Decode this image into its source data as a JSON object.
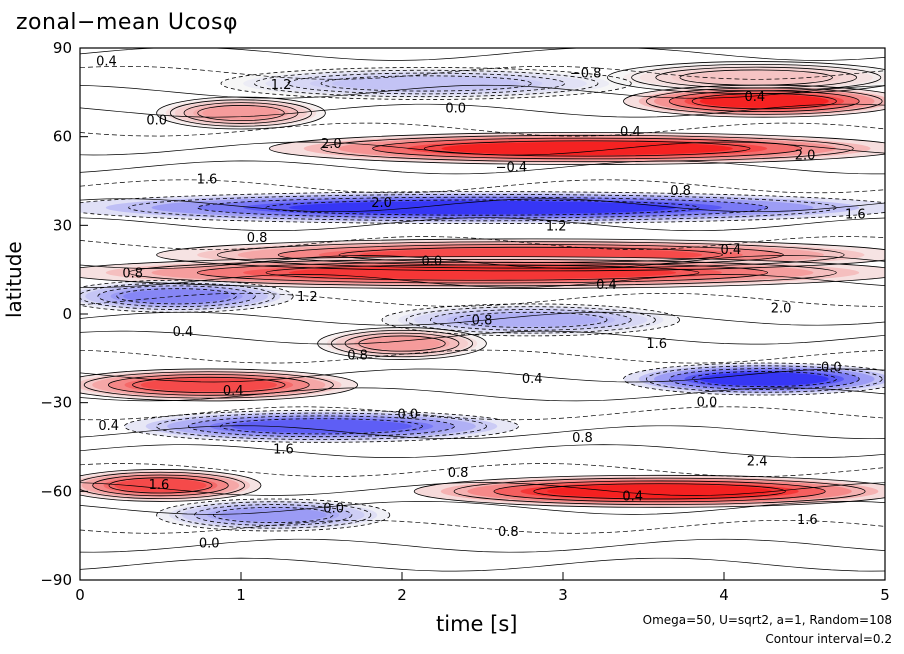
{
  "chart_data": {
    "type": "heatmap",
    "title": "zonal−mean Ucosφ",
    "xlabel": "time [s]",
    "ylabel": "latitude",
    "xlim": [
      0,
      5
    ],
    "ylim": [
      -90,
      90
    ],
    "xticks": [
      "0",
      "1",
      "2",
      "3",
      "4",
      "5"
    ],
    "yticks": [
      "90",
      "60",
      "30",
      "0",
      "−30",
      "−60",
      "−90"
    ],
    "colormap": {
      "negative": "#1e1ef0",
      "zero": "#ffffff",
      "positive": "#f01e1e"
    },
    "contour_interval": 0.2,
    "contour_labels": [
      "0.4",
      "−0.8",
      "1.2",
      "0.4",
      "0.0",
      "0.0",
      "0.4",
      "2.0",
      "2.0",
      "−0.4",
      "1.6",
      "0.8",
      "2.0",
      "1.6",
      "1.2",
      "0.8",
      "0.4",
      "0.0",
      "0.8",
      "0.4",
      "1.2",
      "2.0",
      "0.8",
      "0.4",
      "1.6",
      "0.8",
      "0.0",
      "0.4",
      "0.4",
      "0.0",
      "0.0",
      "0.4",
      "0.8",
      "1.6",
      "2.4",
      "0.8",
      "1.6",
      "0.4",
      "0.0",
      "1.6",
      "0.8",
      "0.0"
    ],
    "bands": [
      {
        "lat": 80,
        "value": 0.6,
        "t0": 3.4,
        "t1": 5
      },
      {
        "lat": 78,
        "value": -0.6,
        "t0": 1.0,
        "t1": 3.3
      },
      {
        "lat": 68,
        "value": 1.0,
        "t0": 0.6,
        "t1": 1.4
      },
      {
        "lat": 72,
        "value": 2.2,
        "t0": 3.5,
        "t1": 5
      },
      {
        "lat": 56,
        "value": 2.2,
        "t0": 1.3,
        "t1": 5
      },
      {
        "lat": 36,
        "value": -2.0,
        "t0": 0,
        "t1": 5
      },
      {
        "lat": 20,
        "value": 1.8,
        "t0": 0.6,
        "t1": 5
      },
      {
        "lat": 14,
        "value": 2.0,
        "t0": 0,
        "t1": 5
      },
      {
        "lat": 6,
        "value": -1.2,
        "t0": 0,
        "t1": 1.2
      },
      {
        "lat": -2,
        "value": -0.8,
        "t0": 2.0,
        "t1": 3.6
      },
      {
        "lat": -10,
        "value": 1.0,
        "t0": 1.6,
        "t1": 2.4
      },
      {
        "lat": -24,
        "value": 1.8,
        "t0": 0,
        "t1": 1.6
      },
      {
        "lat": -22,
        "value": -2.0,
        "t0": 3.5,
        "t1": 5
      },
      {
        "lat": -38,
        "value": -1.6,
        "t0": 0.4,
        "t1": 2.6
      },
      {
        "lat": -58,
        "value": 1.8,
        "t0": 0,
        "t1": 1.0
      },
      {
        "lat": -60,
        "value": 2.4,
        "t0": 2.2,
        "t1": 5
      },
      {
        "lat": -68,
        "value": -1.0,
        "t0": 0.6,
        "t1": 1.8
      }
    ]
  },
  "footnote": {
    "line1": "Omega=50, U=sqrt2, a=1, Random=108",
    "line2": "Contour interval=0.2"
  }
}
